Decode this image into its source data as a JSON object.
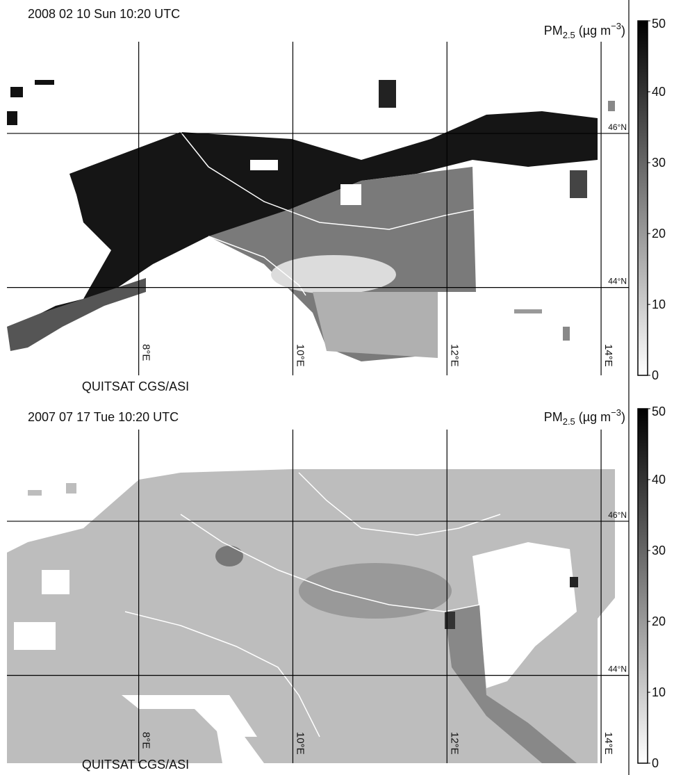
{
  "panels": [
    {
      "timestamp": "2008 02 10 Sun  10:20 UTC",
      "pm_label": {
        "base": "PM",
        "sub": "2.5",
        "unit": " (µg m",
        "sup": "−3",
        "close": ")"
      },
      "credit": "QUITSAT CGS/ASI",
      "lon_lim": [
        6.29,
        14.36
      ],
      "lat_lim": [
        42.86,
        47.19
      ],
      "lon_ticks": [
        {
          "value": 8,
          "label": "8°E"
        },
        {
          "value": 10,
          "label": "10°E"
        },
        {
          "value": 12,
          "label": "12°E"
        },
        {
          "value": 14,
          "label": "14°E"
        }
      ],
      "lat_ticks": [
        {
          "value": 44,
          "label": "44°N"
        },
        {
          "value": 46,
          "label": "46°N"
        }
      ],
      "colorbar": {
        "lim": [
          0,
          50
        ],
        "ticks": [
          0,
          10,
          20,
          30,
          40,
          50
        ]
      }
    },
    {
      "timestamp": "2007 07 17 Tue 10:20 UTC",
      "pm_label": {
        "base": "PM",
        "sub": "2.5",
        "unit": " (µg m",
        "sup": "−3",
        "close": ")"
      },
      "credit": "QUITSAT CGS/ASI",
      "lon_lim": [
        6.29,
        14.36
      ],
      "lat_lim": [
        42.86,
        47.19
      ],
      "lon_ticks": [
        {
          "value": 8,
          "label": "8°E"
        },
        {
          "value": 10,
          "label": "10°E"
        },
        {
          "value": 12,
          "label": "12°E"
        },
        {
          "value": 14,
          "label": "14°E"
        }
      ],
      "lat_ticks": [
        {
          "value": 44,
          "label": "44°N"
        },
        {
          "value": 46,
          "label": "46°N"
        }
      ],
      "colorbar": {
        "lim": [
          0,
          50
        ],
        "ticks": [
          0,
          10,
          20,
          30,
          40,
          50
        ]
      }
    }
  ]
}
